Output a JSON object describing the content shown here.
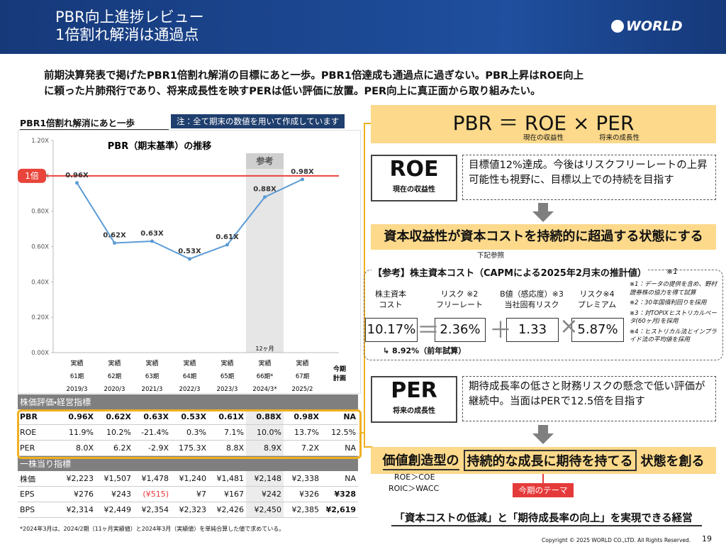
{
  "header": {
    "title": [
      "PBR向上進捗レビュー",
      "1倍割れ解消は通過点"
    ],
    "logo": "WORLD"
  },
  "lead": [
    "前期決算発表で掲げたPBR1倍割れ解消の目標にあと一歩。PBR1倍達成も通過点に過ぎない。PBR上昇はROE向上",
    "に頼った片肺飛行であり、将来成長性を映すPERは低い評価に放置。PER向上に真正面から取り組みたい。"
  ],
  "left": {
    "title": "PBR1倍割れ解消にあと一歩",
    "note": "注：全て期末の数値を用いて作成しています"
  },
  "chart_data": {
    "type": "line",
    "title": "PBR（期末基準）の推移",
    "categories": [
      "61期",
      "62期",
      "63期",
      "64期",
      "65期",
      "66期*",
      "67期"
    ],
    "category_kinds": [
      "実績",
      "実績",
      "実績",
      "実績",
      "実績",
      "実績",
      "実績"
    ],
    "category_dates": [
      "2019/3",
      "2020/3",
      "2021/3",
      "2022/3",
      "2023/3",
      "2024/3*",
      "2025/2"
    ],
    "plan_label": [
      "今期",
      "計画"
    ],
    "values": [
      0.96,
      0.62,
      0.63,
      0.53,
      0.61,
      0.88,
      0.98
    ],
    "value_labels": [
      "0.96X",
      "0.62X",
      "0.63X",
      "0.53X",
      "0.61X",
      "0.88X",
      "0.98X"
    ],
    "color": "#5b9bd5",
    "ylim": [
      0,
      1.2
    ],
    "yticks": [
      {
        "value": 0,
        "label": "0.00X"
      },
      {
        "value": 0.2,
        "label": "0.20X"
      },
      {
        "value": 0.4,
        "label": "0.40X"
      },
      {
        "value": 0.6,
        "label": "0.60X"
      },
      {
        "value": 0.8,
        "label": "0.80X"
      },
      {
        "value": 1,
        "label": "1.00X"
      },
      {
        "value": 1.2,
        "label": "1.20X"
      }
    ],
    "reference_line": {
      "value": 1,
      "label": "1倍",
      "color": "#e8443a"
    },
    "highlight": {
      "index": 5,
      "label": "参考",
      "note": "12ヶ月"
    }
  },
  "table": {
    "sections": [
      {
        "title": "株価評価・経営指標",
        "rows": [
          {
            "label": "PBR",
            "cells": [
              "0.96X",
              "0.62X",
              "0.63X",
              "0.53X",
              "0.61X",
              "0.88X",
              "0.98X",
              "NA"
            ]
          },
          {
            "label": "ROE",
            "cells": [
              "11.9%",
              "10.2%",
              "-21.4%",
              "0.3%",
              "7.1%",
              "10.0%",
              "13.7%",
              "12.5%"
            ]
          },
          {
            "label": "PER",
            "cells": [
              "8.0X",
              "6.2X",
              "-2.9X",
              "175.3X",
              "8.8X",
              "8.9X",
              "7.2X",
              "NA"
            ]
          }
        ]
      },
      {
        "title": "一株当り指標",
        "rows": [
          {
            "label": "株価",
            "cells": [
              "¥2,223",
              "¥1,507",
              "¥1,478",
              "¥1,240",
              "¥1,481",
              "¥2,148",
              "¥2,338",
              "NA"
            ]
          },
          {
            "label": "EPS",
            "cells": [
              "¥276",
              "¥243",
              "(¥515)",
              "¥7",
              "¥167",
              "¥242",
              "¥326",
              "¥328"
            ]
          },
          {
            "label": "BPS",
            "cells": [
              "¥2,314",
              "¥2,449",
              "¥2,354",
              "¥2,323",
              "¥2,426",
              "¥2,450",
              "¥2,385",
              "¥2,619"
            ]
          }
        ]
      }
    ]
  },
  "footnote": "*2024年3月は、2024/2期（11ヶ月実績値）と2024年3月（実績値）を単純合算した値で求めている。",
  "formula": {
    "text": "PBR ＝ ROE × PER",
    "roe_sub": "現在の収益性",
    "per_sub": "将来の成長性"
  },
  "roe": {
    "title": "ROE",
    "sub": "現在の収益性",
    "text": "目標値12%達成。今後はリスクフリーレートの上昇可能性も視野に、目標以上での持続を目指す"
  },
  "banner1": {
    "text": "資本収益性が資本コストを持続的に超過する状態にする",
    "sub": "下記参照"
  },
  "reference": {
    "title": "【参考】株主資本コスト（CAPMによる2025年2月末の推計値）",
    "mark": "※1",
    "items": [
      {
        "label": [
          "株主資本",
          "コスト"
        ],
        "value": "10.17%"
      },
      {
        "label": [
          "リスク ※2",
          "フリーレート"
        ],
        "value": "2.36%"
      },
      {
        "label": [
          "B値（感応度）※3",
          "当社固有リスク"
        ],
        "value": "1.33"
      },
      {
        "label": [
          "リスク※4",
          "プレミアム"
        ],
        "value": "5.87%"
      }
    ],
    "operators": [
      "＝",
      "＋",
      "×"
    ],
    "previous": "8.92%（前年試算）",
    "notes": [
      "※1：データの提供を含め、野村證券株の協力を得て試算",
      "※2：30年国債利回りを採用",
      "※3：対TOPIXヒストリカルベータ(60ヶ月)を採用",
      "※4：ヒストリカル法とインプライド法の平均値を採用"
    ]
  },
  "per": {
    "title": "PER",
    "sub": "将来の成長性",
    "text": "期待成長率の低さと財務リスクの懸念で低い評価が継続中。当面はPERで12.5倍を目指す"
  },
  "banner2": {
    "parts": [
      "価値創造型の",
      "持続的な成長に期待を持てる",
      "状態を創る"
    ],
    "subs": [
      "ROE＞COE",
      "ROIC＞WACC"
    ],
    "tag": "今期のテーマ"
  },
  "conclusion": "「資本コストの低減」と「期待成長率の向上」を実現できる経営",
  "footer": {
    "copyright": "Copyright © 2025 WORLD CO.,LTD. All Rights Reserved.",
    "page": "19"
  }
}
